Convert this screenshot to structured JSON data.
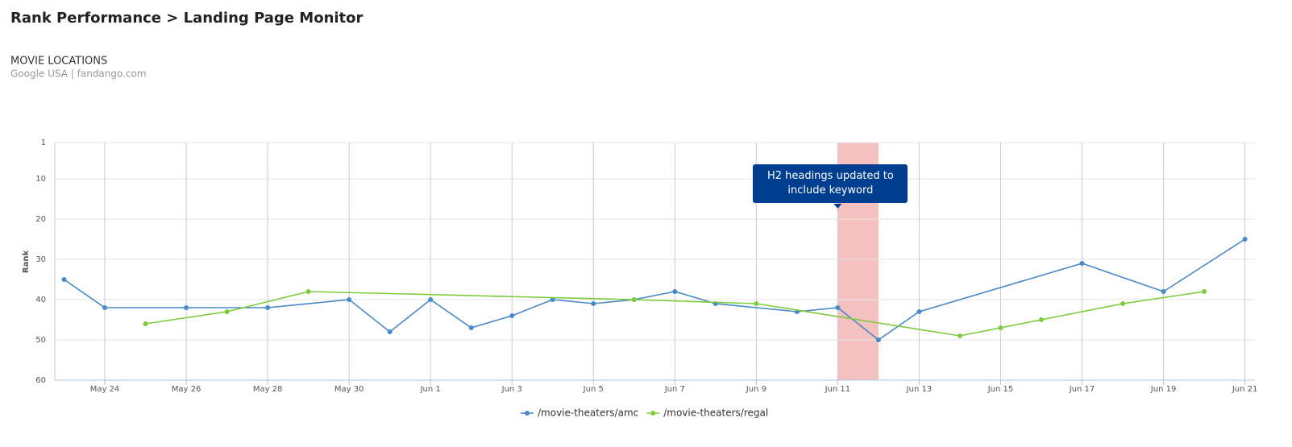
{
  "header": {
    "title": "Rank Performance > Landing Page Monitor",
    "subtitle": "MOVIE LOCATIONS",
    "source": "Google USA | fandango.com"
  },
  "chart_data": {
    "type": "line",
    "y_label": "Rank",
    "ylim": [
      1,
      60
    ],
    "yticks": [
      1,
      10,
      20,
      30,
      40,
      50,
      60
    ],
    "reversed": true,
    "xlim": [
      "May 23",
      "Jun 21"
    ],
    "xticks": [
      "May 24",
      "May 26",
      "May 28",
      "May 30",
      "Jun 1",
      "Jun 3",
      "Jun 5",
      "Jun 7",
      "Jun 9",
      "Jun 11",
      "Jun 13",
      "Jun 15",
      "Jun 17",
      "Jun 19",
      "Jun 21"
    ],
    "grid": true,
    "plot_band": {
      "from": "Jun 11",
      "to": "Jun 12",
      "color": "#f4c0c0"
    },
    "annotation": {
      "text": "H2 headings updated to include keyword",
      "x": "Jun 11",
      "color": "#003f8f"
    },
    "series": [
      {
        "name": "/movie-theaters/amc",
        "color": "#4a89c8",
        "x": [
          "May 23",
          "May 24",
          "May 26",
          "May 28",
          "May 30",
          "May 31",
          "Jun 1",
          "Jun 2",
          "Jun 3",
          "Jun 4",
          "Jun 5",
          "Jun 6",
          "Jun 7",
          "Jun 8",
          "Jun 10",
          "Jun 11",
          "Jun 12",
          "Jun 13",
          "Jun 17",
          "Jun 19",
          "Jun 21"
        ],
        "values": [
          35,
          42,
          42,
          42,
          40,
          48,
          40,
          47,
          44,
          40,
          41,
          40,
          38,
          41,
          43,
          42,
          50,
          43,
          31,
          38,
          25
        ]
      },
      {
        "name": "/movie-theaters/regal",
        "color": "#7ccc3c",
        "x": [
          "May 25",
          "May 27",
          "May 29",
          "Jun 6",
          "Jun 9",
          "Jun 14",
          "Jun 15",
          "Jun 16",
          "Jun 18",
          "Jun 20"
        ],
        "values": [
          46,
          43,
          38,
          40,
          41,
          49,
          47,
          45,
          41,
          38
        ]
      }
    ]
  }
}
